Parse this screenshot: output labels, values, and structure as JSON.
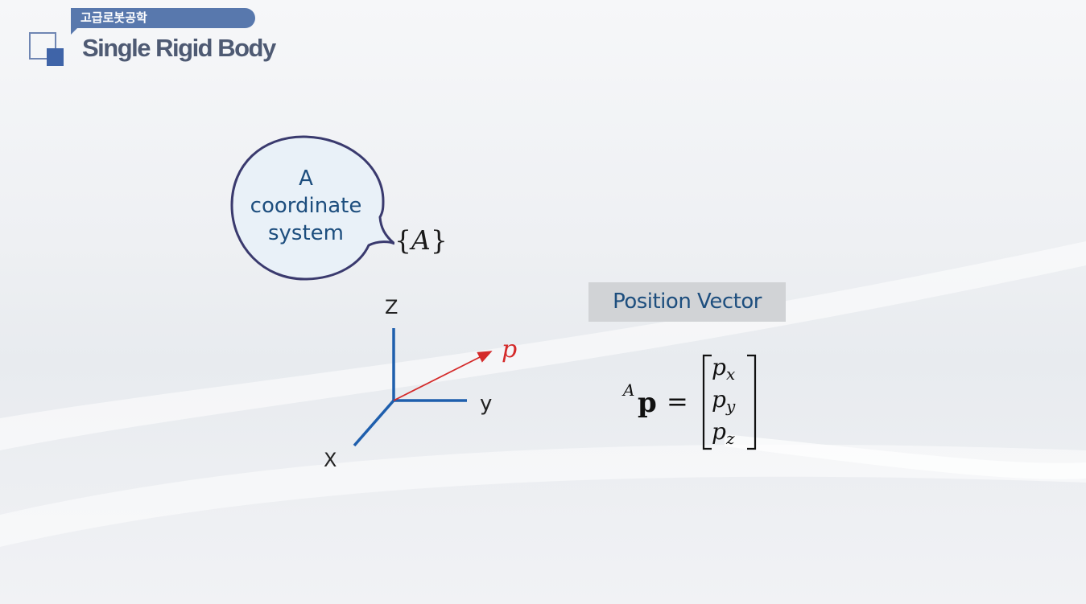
{
  "header": {
    "category": "고급로봇공학",
    "title": "Single Rigid Body"
  },
  "bubble": {
    "lines": [
      "A",
      "coordinate",
      "system"
    ]
  },
  "frame_label": {
    "open": "{",
    "name": "A",
    "close": "}"
  },
  "axes": {
    "z_label": "Z",
    "y_label": "y",
    "x_label": "X",
    "vector_label": "p"
  },
  "position_vector": {
    "title": "Position Vector",
    "lhs_superscript": "A",
    "lhs_symbol": "p",
    "equals": "=",
    "components": [
      {
        "base": "p",
        "sub": "x"
      },
      {
        "base": "p",
        "sub": "y"
      },
      {
        "base": "p",
        "sub": "z"
      }
    ]
  },
  "colors": {
    "accent": "#5878ad",
    "bubble_text": "#1d4e7e",
    "axis_blue": "#1f5fad",
    "vector_red": "#d42a2a"
  }
}
